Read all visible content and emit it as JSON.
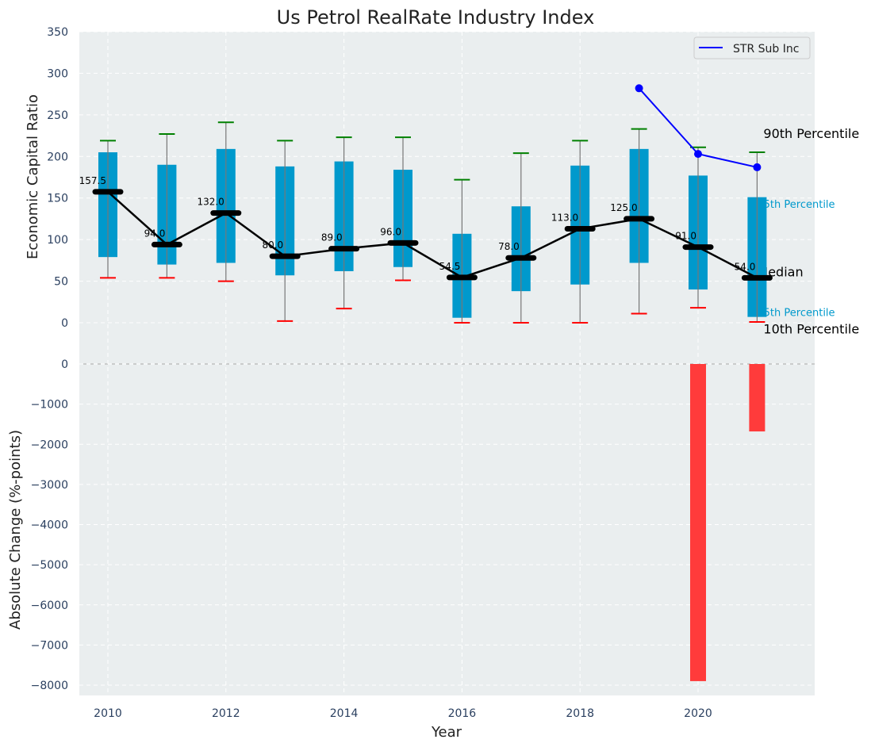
{
  "chart_data": {
    "type": "box",
    "title": "Us Petrol RealRate Industry Index",
    "xlabel": "Year",
    "top_panel": {
      "ylabel": "Economic Capital Ratio",
      "ylim": [
        0,
        350
      ],
      "yticks": [
        0,
        50,
        100,
        150,
        200,
        250,
        300,
        350
      ],
      "years": [
        2010,
        2011,
        2012,
        2013,
        2014,
        2015,
        2016,
        2017,
        2018,
        2019,
        2020,
        2021
      ],
      "p10": [
        54,
        54,
        50,
        2,
        17,
        51,
        0,
        0,
        0,
        11,
        18,
        1
      ],
      "p25": [
        79,
        70,
        72,
        57,
        62,
        67,
        6,
        38,
        46,
        72,
        40,
        7
      ],
      "median": [
        157.5,
        94,
        132,
        80,
        89,
        96,
        54.5,
        78,
        113,
        125,
        91,
        54
      ],
      "median_labels": [
        "157.5",
        "94.0",
        "132.0",
        "80.0",
        "89.0",
        "96.0",
        "54.5",
        "78.0",
        "113.0",
        "125.0",
        "91.0",
        "54.0"
      ],
      "p75": [
        205,
        190,
        209,
        188,
        194,
        184,
        107,
        140,
        189,
        209,
        177,
        151
      ],
      "p90": [
        219,
        227,
        241,
        219,
        223,
        223,
        172,
        204,
        219,
        233,
        211,
        205
      ],
      "series": [
        {
          "name": "STR Sub Inc",
          "x": [
            2019,
            2020,
            2021
          ],
          "values": [
            282,
            203,
            187
          ],
          "color": "#0000ff"
        }
      ],
      "legend": {
        "position": "top-right",
        "entries": [
          "STR Sub Inc"
        ]
      },
      "annotations": [
        "90th Percentile",
        "75th Percentile",
        "Median",
        "25th Percentile",
        "10th Percentile"
      ]
    },
    "bottom_panel": {
      "ylabel": "Absolute Change (%-points)",
      "ylim": [
        -8250,
        0
      ],
      "yticks": [
        0,
        -1000,
        -2000,
        -3000,
        -4000,
        -5000,
        -6000,
        -7000,
        -8000
      ],
      "ytick_labels": [
        "0",
        "−1000",
        "−2000",
        "−3000",
        "−4000",
        "−5000",
        "−6000",
        "−7000",
        "−8000"
      ],
      "bars": {
        "x": [
          2020,
          2021
        ],
        "values": [
          -7900,
          -1680
        ],
        "color": "#ff3b3b"
      }
    },
    "xticks": [
      2010,
      2012,
      2014,
      2016,
      2018,
      2020
    ],
    "grid": true,
    "colors": {
      "box": "#0099cc",
      "median": "#000000",
      "p90": "#008000",
      "p10": "#ff0000",
      "bg": "#eaeeef"
    }
  }
}
